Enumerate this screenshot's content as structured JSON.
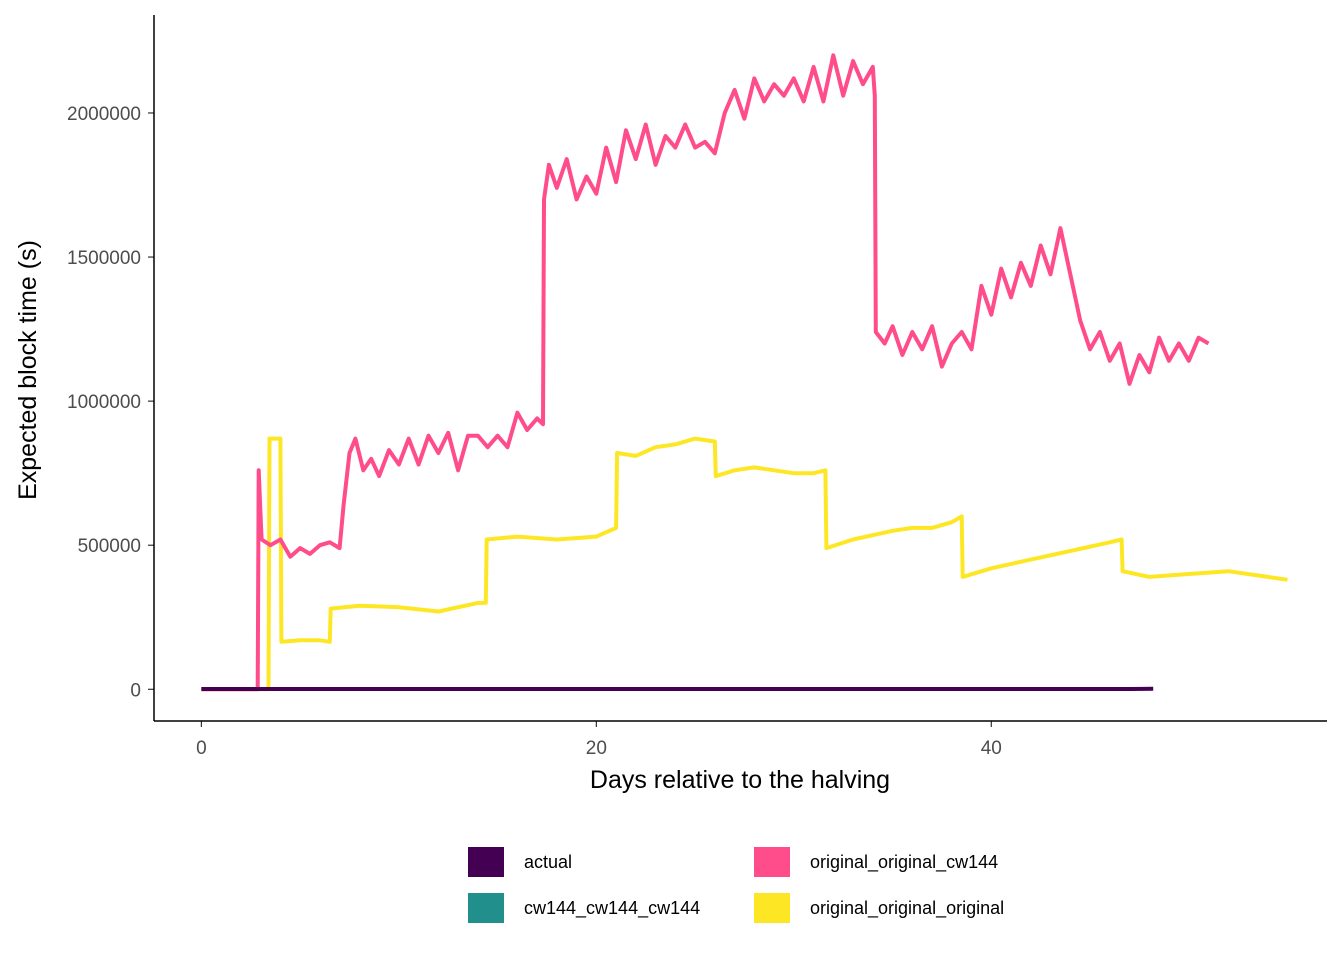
{
  "chart_data": {
    "type": "line",
    "xlabel": "Days relative to the halving",
    "ylabel": "Expected block time (s)",
    "xlim": [
      -2.4,
      57
    ],
    "ylim": [
      -110000,
      2340000
    ],
    "x_ticks": [
      0,
      20,
      40
    ],
    "y_ticks": [
      0,
      500000,
      1000000,
      1500000,
      2000000
    ],
    "grid": false,
    "legend_position": "bottom",
    "series": [
      {
        "name": "actual",
        "color": "#440154",
        "points": [
          [
            0,
            1000
          ],
          [
            3.5,
            1000
          ],
          [
            10,
            1000
          ],
          [
            20,
            1000
          ],
          [
            30,
            1000
          ],
          [
            40,
            1000
          ],
          [
            47,
            1000
          ],
          [
            48.2,
            2000
          ]
        ]
      },
      {
        "name": "cw144_cw144_cw144",
        "color": "#21908C",
        "points": [
          [
            0,
            1000
          ],
          [
            3.5,
            1000
          ],
          [
            10,
            1000
          ],
          [
            20,
            1000
          ],
          [
            30,
            1000
          ],
          [
            40,
            1000
          ],
          [
            47.2,
            1000
          ]
        ]
      },
      {
        "name": "original_original_cw144",
        "color": "#FF4C8B",
        "points": [
          [
            0,
            0
          ],
          [
            2.85,
            0
          ],
          [
            2.9,
            760000
          ],
          [
            3.0,
            600000
          ],
          [
            3.05,
            520000
          ],
          [
            3.5,
            500000
          ],
          [
            4.0,
            520000
          ],
          [
            4.5,
            460000
          ],
          [
            5.0,
            490000
          ],
          [
            5.5,
            470000
          ],
          [
            6.0,
            500000
          ],
          [
            6.5,
            510000
          ],
          [
            7.0,
            490000
          ],
          [
            7.2,
            640000
          ],
          [
            7.5,
            820000
          ],
          [
            7.8,
            870000
          ],
          [
            8.2,
            760000
          ],
          [
            8.6,
            800000
          ],
          [
            9.0,
            740000
          ],
          [
            9.5,
            830000
          ],
          [
            10.0,
            780000
          ],
          [
            10.5,
            870000
          ],
          [
            11.0,
            780000
          ],
          [
            11.5,
            880000
          ],
          [
            12.0,
            820000
          ],
          [
            12.5,
            890000
          ],
          [
            13.0,
            760000
          ],
          [
            13.5,
            880000
          ],
          [
            14.0,
            880000
          ],
          [
            14.5,
            840000
          ],
          [
            15.0,
            880000
          ],
          [
            15.5,
            840000
          ],
          [
            16.0,
            960000
          ],
          [
            16.5,
            900000
          ],
          [
            17.0,
            940000
          ],
          [
            17.3,
            920000
          ],
          [
            17.35,
            1700000
          ],
          [
            17.6,
            1820000
          ],
          [
            18.0,
            1740000
          ],
          [
            18.5,
            1840000
          ],
          [
            19.0,
            1700000
          ],
          [
            19.5,
            1780000
          ],
          [
            20.0,
            1720000
          ],
          [
            20.5,
            1880000
          ],
          [
            21.0,
            1760000
          ],
          [
            21.5,
            1940000
          ],
          [
            22.0,
            1840000
          ],
          [
            22.5,
            1960000
          ],
          [
            23.0,
            1820000
          ],
          [
            23.5,
            1920000
          ],
          [
            24.0,
            1880000
          ],
          [
            24.5,
            1960000
          ],
          [
            25.0,
            1880000
          ],
          [
            25.5,
            1900000
          ],
          [
            26.0,
            1860000
          ],
          [
            26.5,
            2000000
          ],
          [
            27.0,
            2080000
          ],
          [
            27.5,
            1980000
          ],
          [
            28.0,
            2120000
          ],
          [
            28.5,
            2040000
          ],
          [
            29.0,
            2100000
          ],
          [
            29.5,
            2060000
          ],
          [
            30.0,
            2120000
          ],
          [
            30.5,
            2040000
          ],
          [
            31.0,
            2160000
          ],
          [
            31.5,
            2040000
          ],
          [
            32.0,
            2200000
          ],
          [
            32.5,
            2060000
          ],
          [
            33.0,
            2180000
          ],
          [
            33.5,
            2100000
          ],
          [
            34.0,
            2160000
          ],
          [
            34.1,
            2060000
          ],
          [
            34.15,
            1240000
          ],
          [
            34.6,
            1200000
          ],
          [
            35.0,
            1260000
          ],
          [
            35.5,
            1160000
          ],
          [
            36.0,
            1240000
          ],
          [
            36.5,
            1180000
          ],
          [
            37.0,
            1260000
          ],
          [
            37.5,
            1120000
          ],
          [
            38.0,
            1200000
          ],
          [
            38.5,
            1240000
          ],
          [
            39.0,
            1180000
          ],
          [
            39.5,
            1400000
          ],
          [
            40.0,
            1300000
          ],
          [
            40.5,
            1460000
          ],
          [
            41.0,
            1360000
          ],
          [
            41.5,
            1480000
          ],
          [
            42.0,
            1400000
          ],
          [
            42.5,
            1540000
          ],
          [
            43.0,
            1440000
          ],
          [
            43.5,
            1600000
          ],
          [
            44.0,
            1440000
          ],
          [
            44.5,
            1280000
          ],
          [
            45.0,
            1180000
          ],
          [
            45.5,
            1240000
          ],
          [
            46.0,
            1140000
          ],
          [
            46.5,
            1200000
          ],
          [
            47.0,
            1060000
          ],
          [
            47.5,
            1160000
          ],
          [
            48.0,
            1100000
          ],
          [
            48.5,
            1220000
          ],
          [
            49.0,
            1140000
          ],
          [
            49.5,
            1200000
          ],
          [
            50.0,
            1140000
          ],
          [
            50.5,
            1220000
          ],
          [
            51.0,
            1200000
          ]
        ]
      },
      {
        "name": "original_original_original",
        "color": "#FDE725",
        "points": [
          [
            0,
            0
          ],
          [
            3.4,
            0
          ],
          [
            3.45,
            870000
          ],
          [
            4.0,
            870000
          ],
          [
            4.05,
            165000
          ],
          [
            5.0,
            170000
          ],
          [
            6.0,
            170000
          ],
          [
            6.5,
            165000
          ],
          [
            6.55,
            280000
          ],
          [
            8.0,
            290000
          ],
          [
            10.0,
            285000
          ],
          [
            12.0,
            270000
          ],
          [
            14.0,
            300000
          ],
          [
            14.4,
            300000
          ],
          [
            14.45,
            520000
          ],
          [
            16.0,
            530000
          ],
          [
            18.0,
            520000
          ],
          [
            20.0,
            530000
          ],
          [
            21.0,
            560000
          ],
          [
            21.05,
            820000
          ],
          [
            22.0,
            810000
          ],
          [
            23.0,
            840000
          ],
          [
            24.0,
            850000
          ],
          [
            25.0,
            870000
          ],
          [
            26.0,
            860000
          ],
          [
            26.05,
            740000
          ],
          [
            27.0,
            760000
          ],
          [
            28.0,
            770000
          ],
          [
            29.0,
            760000
          ],
          [
            30.0,
            750000
          ],
          [
            31.0,
            750000
          ],
          [
            31.6,
            760000
          ],
          [
            31.65,
            490000
          ],
          [
            33.0,
            520000
          ],
          [
            35.0,
            550000
          ],
          [
            36.0,
            560000
          ],
          [
            37.0,
            560000
          ],
          [
            38.0,
            580000
          ],
          [
            38.5,
            600000
          ],
          [
            38.55,
            390000
          ],
          [
            40.0,
            420000
          ],
          [
            42.0,
            450000
          ],
          [
            44.0,
            480000
          ],
          [
            46.0,
            510000
          ],
          [
            46.6,
            520000
          ],
          [
            46.65,
            410000
          ],
          [
            48.0,
            390000
          ],
          [
            50.0,
            400000
          ],
          [
            52.0,
            410000
          ],
          [
            54.0,
            390000
          ],
          [
            55.0,
            380000
          ]
        ]
      }
    ]
  }
}
